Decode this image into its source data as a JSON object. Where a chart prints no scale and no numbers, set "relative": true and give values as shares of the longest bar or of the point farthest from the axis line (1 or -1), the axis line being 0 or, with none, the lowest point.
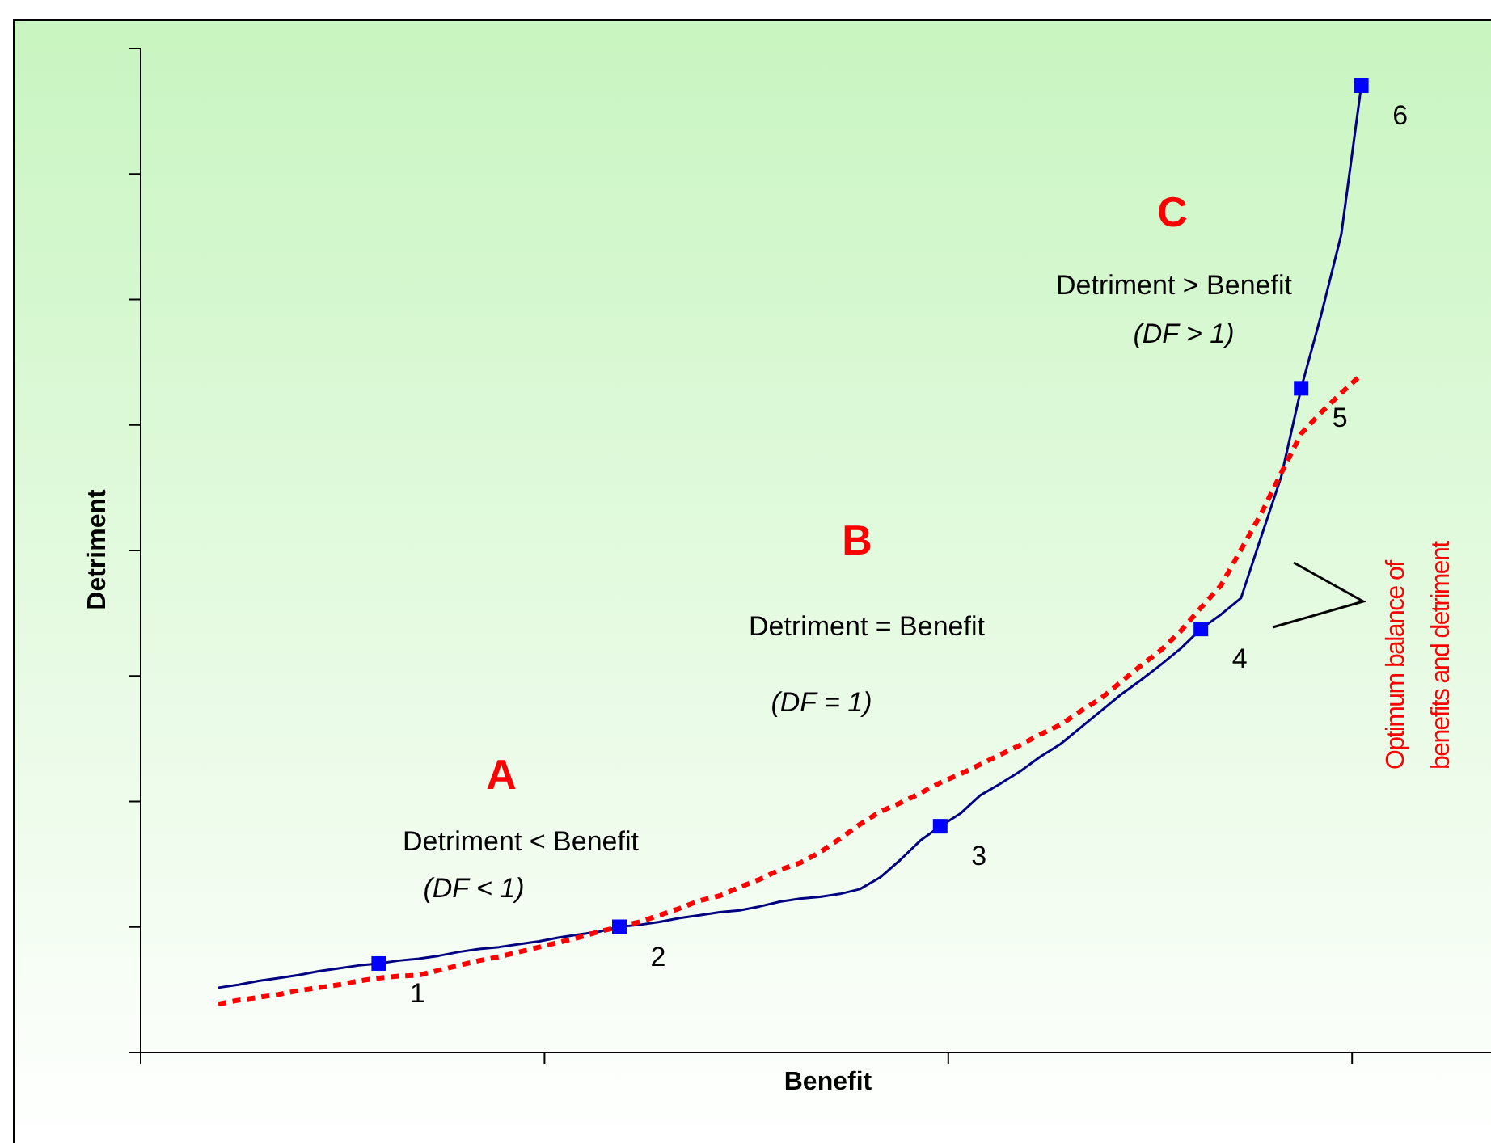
{
  "chart_data": {
    "type": "line",
    "relative": true,
    "xlabel": "Benefit",
    "ylabel": "Detriment",
    "categories": [
      null,
      null,
      null,
      null,
      null,
      null,
      null,
      null,
      null,
      null,
      null,
      null,
      null,
      null,
      null,
      null,
      null,
      null,
      null,
      null,
      null,
      null,
      null,
      null,
      null,
      null,
      null,
      null,
      null,
      null,
      null,
      null,
      null,
      null,
      null,
      null,
      null,
      null,
      null,
      null,
      null,
      null,
      null,
      null,
      null,
      null,
      null,
      null,
      null,
      null,
      null,
      null,
      null,
      null,
      null,
      null,
      null,
      null
    ],
    "series": [
      {
        "color": "#000080",
        "line_style": "solid",
        "values": [
          0.067,
          0.07,
          0.074,
          0.077,
          0.08,
          0.084,
          0.087,
          0.09,
          0.092,
          0.095,
          0.097,
          0.1,
          0.104,
          0.107,
          0.109,
          0.112,
          0.115,
          0.119,
          0.122,
          0.125,
          0.13,
          0.132,
          0.135,
          0.139,
          0.142,
          0.145,
          0.147,
          0.151,
          0.156,
          0.159,
          0.161,
          0.164,
          0.169,
          0.181,
          0.199,
          0.219,
          0.234,
          0.247,
          0.266,
          0.278,
          0.291,
          0.306,
          0.319,
          0.336,
          0.353,
          0.37,
          0.385,
          0.401,
          0.418,
          0.438,
          0.453,
          0.47,
          0.533,
          0.595,
          0.687,
          0.763,
          0.846,
          1
        ]
      },
      {
        "color": "#ff0000",
        "line_style": "dashed",
        "values": [
          0.05,
          0.054,
          0.057,
          0.06,
          0.064,
          0.067,
          0.07,
          0.074,
          0.077,
          0.079,
          0.08,
          0.085,
          0.09,
          0.095,
          0.099,
          0.104,
          0.109,
          0.114,
          0.119,
          0.125,
          0.13,
          0.135,
          0.142,
          0.149,
          0.157,
          0.162,
          0.171,
          0.179,
          0.189,
          0.196,
          0.207,
          0.221,
          0.236,
          0.249,
          0.258,
          0.268,
          0.279,
          0.288,
          0.298,
          0.308,
          0.318,
          0.329,
          0.339,
          0.353,
          0.366,
          0.383,
          0.4,
          0.416,
          0.436,
          0.46,
          0.483,
          0.52,
          0.557,
          0.599,
          0.64,
          0.662,
          0.682,
          0.701
        ]
      }
    ],
    "annotations": [
      "A",
      "Detriment < Benefit",
      "(DF < 1)",
      "B",
      "Detriment = Benefit",
      "(DF = 1)",
      "C",
      "Detriment > Benefit",
      "(DF > 1)",
      "Optimum balance of benefits and detriment",
      "1",
      "2",
      "3",
      "4",
      "5",
      "6"
    ],
    "legend": false,
    "grid": false
  }
}
